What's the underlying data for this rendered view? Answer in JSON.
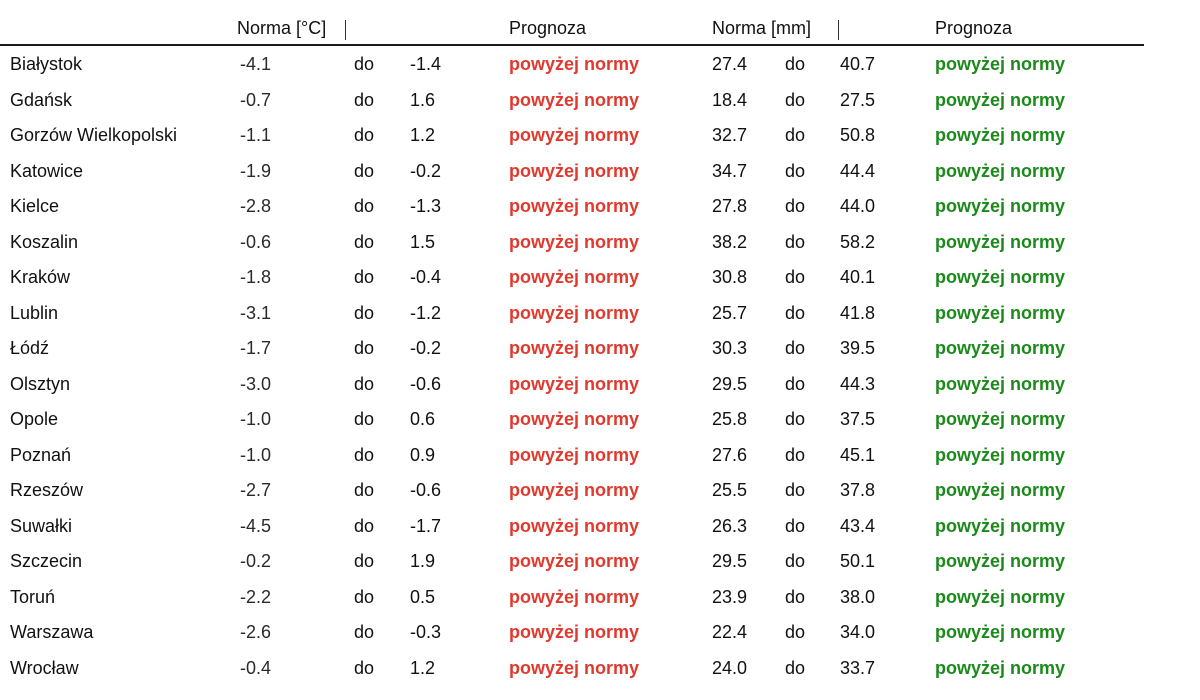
{
  "header": {
    "temp_norm": "Norma [°C]",
    "temp_forecast": "Prognoza",
    "precip_norm": "Norma [mm]",
    "precip_forecast": "Prognoza"
  },
  "range_word": "do",
  "colors": {
    "temp_forecast": "#e0392e",
    "precip_forecast": "#1b8a1b"
  },
  "rows": [
    {
      "city": "Białystok",
      "t_min": "-4.1",
      "t_max": "-1.4",
      "t_forecast": "powyżej normy",
      "p_min": "27.4",
      "p_max": "40.7",
      "p_forecast": "powyżej normy"
    },
    {
      "city": "Gdańsk",
      "t_min": "-0.7",
      "t_max": "1.6",
      "t_forecast": "powyżej normy",
      "p_min": "18.4",
      "p_max": "27.5",
      "p_forecast": "powyżej normy"
    },
    {
      "city": "Gorzów Wielkopolski",
      "t_min": "-1.1",
      "t_max": "1.2",
      "t_forecast": "powyżej normy",
      "p_min": "32.7",
      "p_max": "50.8",
      "p_forecast": "powyżej normy"
    },
    {
      "city": "Katowice",
      "t_min": "-1.9",
      "t_max": "-0.2",
      "t_forecast": "powyżej normy",
      "p_min": "34.7",
      "p_max": "44.4",
      "p_forecast": "powyżej normy"
    },
    {
      "city": "Kielce",
      "t_min": "-2.8",
      "t_max": "-1.3",
      "t_forecast": "powyżej normy",
      "p_min": "27.8",
      "p_max": "44.0",
      "p_forecast": "powyżej normy"
    },
    {
      "city": "Koszalin",
      "t_min": "-0.6",
      "t_max": "1.5",
      "t_forecast": "powyżej normy",
      "p_min": "38.2",
      "p_max": "58.2",
      "p_forecast": "powyżej normy"
    },
    {
      "city": "Kraków",
      "t_min": "-1.8",
      "t_max": "-0.4",
      "t_forecast": "powyżej normy",
      "p_min": "30.8",
      "p_max": "40.1",
      "p_forecast": "powyżej normy"
    },
    {
      "city": "Lublin",
      "t_min": "-3.1",
      "t_max": "-1.2",
      "t_forecast": "powyżej normy",
      "p_min": "25.7",
      "p_max": "41.8",
      "p_forecast": "powyżej normy"
    },
    {
      "city": "Łódź",
      "t_min": "-1.7",
      "t_max": "-0.2",
      "t_forecast": "powyżej normy",
      "p_min": "30.3",
      "p_max": "39.5",
      "p_forecast": "powyżej normy"
    },
    {
      "city": "Olsztyn",
      "t_min": "-3.0",
      "t_max": "-0.6",
      "t_forecast": "powyżej normy",
      "p_min": "29.5",
      "p_max": "44.3",
      "p_forecast": "powyżej normy"
    },
    {
      "city": "Opole",
      "t_min": "-1.0",
      "t_max": "0.6",
      "t_forecast": "powyżej normy",
      "p_min": "25.8",
      "p_max": "37.5",
      "p_forecast": "powyżej normy"
    },
    {
      "city": "Poznań",
      "t_min": "-1.0",
      "t_max": "0.9",
      "t_forecast": "powyżej normy",
      "p_min": "27.6",
      "p_max": "45.1",
      "p_forecast": "powyżej normy"
    },
    {
      "city": "Rzeszów",
      "t_min": "-2.7",
      "t_max": "-0.6",
      "t_forecast": "powyżej normy",
      "p_min": "25.5",
      "p_max": "37.8",
      "p_forecast": "powyżej normy"
    },
    {
      "city": "Suwałki",
      "t_min": "-4.5",
      "t_max": "-1.7",
      "t_forecast": "powyżej normy",
      "p_min": "26.3",
      "p_max": "43.4",
      "p_forecast": "powyżej normy"
    },
    {
      "city": "Szczecin",
      "t_min": "-0.2",
      "t_max": "1.9",
      "t_forecast": "powyżej normy",
      "p_min": "29.5",
      "p_max": "50.1",
      "p_forecast": "powyżej normy"
    },
    {
      "city": "Toruń",
      "t_min": "-2.2",
      "t_max": "0.5",
      "t_forecast": "powyżej normy",
      "p_min": "23.9",
      "p_max": "38.0",
      "p_forecast": "powyżej normy"
    },
    {
      "city": "Warszawa",
      "t_min": "-2.6",
      "t_max": "-0.3",
      "t_forecast": "powyżej normy",
      "p_min": "22.4",
      "p_max": "34.0",
      "p_forecast": "powyżej normy"
    },
    {
      "city": "Wrocław",
      "t_min": "-0.4",
      "t_max": "1.2",
      "t_forecast": "powyżej normy",
      "p_min": "24.0",
      "p_max": "33.7",
      "p_forecast": "powyżej normy"
    }
  ]
}
